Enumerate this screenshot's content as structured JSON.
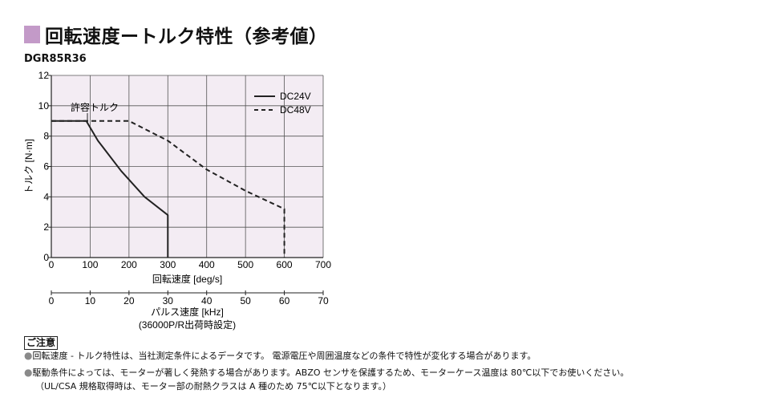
{
  "title": "回転速度ートルク特性（参考値）",
  "model": "DGR85R36",
  "chart_data": {
    "type": "line",
    "ylabel": "トルク [N·m]",
    "xlabel": "回転速度 [deg/s]",
    "x2label": "パルス速度 [kHz]",
    "x2label_sub": "(36000P/R出荷時設定)",
    "xlim": [
      0,
      700
    ],
    "ylim": [
      0,
      12
    ],
    "x2lim": [
      0,
      70
    ],
    "xticks": [
      "0",
      "100",
      "200",
      "300",
      "400",
      "500",
      "600",
      "700"
    ],
    "yticks": [
      "0",
      "2",
      "4",
      "6",
      "8",
      "10",
      "12"
    ],
    "x2ticks": [
      "0",
      "10",
      "20",
      "30",
      "40",
      "50",
      "60",
      "70"
    ],
    "annotation": "許容トルク",
    "grid": true,
    "legend_position": "top-right",
    "colors": {
      "plot_bg": "#f3ecf3",
      "line": "#222222",
      "accent": "#c39ac8"
    },
    "series": [
      {
        "name": "DC24V",
        "style": "solid",
        "x": [
          0,
          90,
          120,
          180,
          240,
          300,
          300
        ],
        "y": [
          9,
          9,
          7.7,
          5.7,
          4.0,
          2.8,
          0
        ]
      },
      {
        "name": "DC48V",
        "style": "dashed",
        "x": [
          0,
          200,
          300,
          400,
          500,
          600,
          600
        ],
        "y": [
          9,
          9,
          7.7,
          5.8,
          4.4,
          3.2,
          0
        ]
      }
    ]
  },
  "notes": {
    "header": "ご注意",
    "bullet": "●",
    "line1": "回転速度 - トルク特性は、当社測定条件によるデータです。 電源電圧や周囲温度などの条件で特性が変化する場合があります。",
    "line2": "駆動条件によっては、モーターが著しく発熱する場合があります。ABZO センサを保護するため、モーターケース温度は 80℃以下でお使いください。",
    "line3": "（UL/CSA 規格取得時は、モーター部の耐熱クラスは A 種のため 75℃以下となります。）"
  }
}
